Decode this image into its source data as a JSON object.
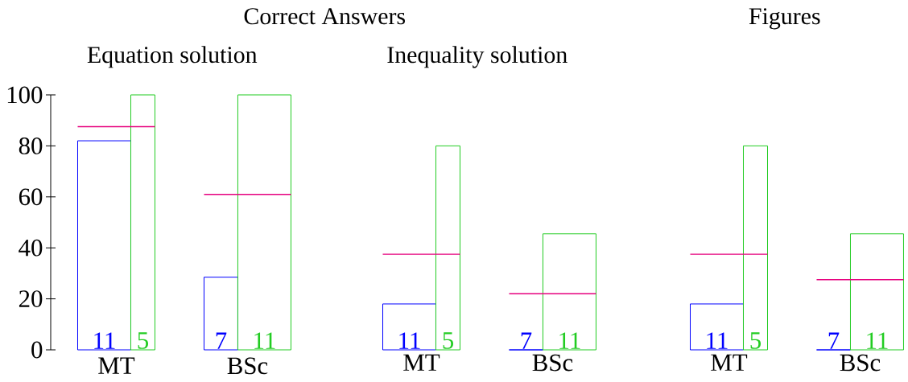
{
  "chart_data": [
    {
      "type": "bar",
      "title": "Correct Answers",
      "subtitle": "Equation solution",
      "categories": [
        "MT",
        "BSc"
      ],
      "series": [
        {
          "color": "#0000ff",
          "values": [
            82,
            28.5
          ]
        },
        {
          "color": "#22cc22",
          "values": [
            100,
            100
          ]
        }
      ],
      "ref_lines": [
        {
          "axis": "y",
          "value": 87.5,
          "color": "#e6007e"
        },
        {
          "axis": "y",
          "value": 61,
          "color": "#e6007e"
        }
      ],
      "annotations": [
        "11",
        "5",
        "7",
        "11"
      ],
      "ylim": [
        0,
        100
      ],
      "yticks": [
        0,
        20,
        40,
        60,
        80,
        100
      ]
    },
    {
      "type": "bar",
      "subtitle": "Inequality solution",
      "categories": [
        "MT",
        "BSc"
      ],
      "series": [
        {
          "color": "#0000ff",
          "values": [
            18,
            0
          ]
        },
        {
          "color": "#22cc22",
          "values": [
            80,
            45.5
          ]
        }
      ],
      "ref_lines": [
        {
          "axis": "y",
          "value": 37.5,
          "color": "#e6007e"
        },
        {
          "axis": "y",
          "value": 22,
          "color": "#e6007e"
        }
      ],
      "annotations": [
        "11",
        "5",
        "7",
        "11"
      ],
      "ylim": [
        0,
        100
      ],
      "tick_labels": "x"
    },
    {
      "type": "bar",
      "title": "Figures",
      "categories": [
        "MT",
        "BSc"
      ],
      "series": [
        {
          "color": "#0000ff",
          "values": [
            18,
            0
          ]
        },
        {
          "color": "#22cc22",
          "values": [
            80,
            45.5
          ]
        }
      ],
      "ref_lines": [
        {
          "axis": "y",
          "value": 37.5,
          "color": "#e6007e"
        },
        {
          "axis": "y",
          "value": 27.5,
          "color": "#e6007e"
        }
      ],
      "annotations": [
        "11",
        "5",
        "7",
        "11"
      ],
      "ylim": [
        0,
        100
      ],
      "tick_labels": "x"
    }
  ]
}
